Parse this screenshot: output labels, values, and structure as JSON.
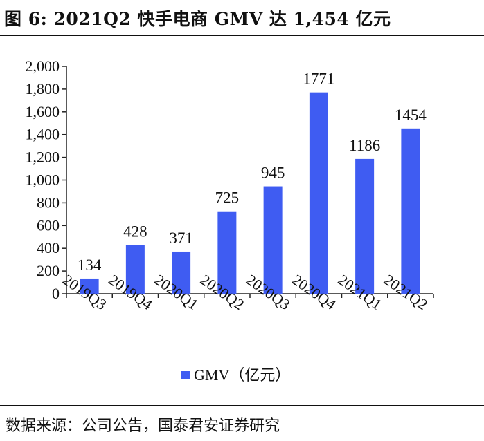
{
  "title": "图 6:  2021Q2 快手电商 GMV 达 1,454 亿元",
  "source": "数据来源：公司公告，国泰君安证券研究",
  "colors": {
    "bar": "#3f5cf2",
    "axis": "#222222"
  },
  "chart_data": {
    "type": "bar",
    "title": "",
    "xlabel": "",
    "ylabel": "",
    "categories": [
      "2019Q3",
      "2019Q4",
      "2020Q1",
      "2020Q2",
      "2020Q3",
      "2020Q4",
      "2021Q1",
      "2021Q2"
    ],
    "series": [
      {
        "name": "GMV（亿元）",
        "values": [
          134,
          428,
          371,
          725,
          945,
          1771,
          1186,
          1454
        ]
      }
    ],
    "data_labels": [
      "134",
      "428",
      "371",
      "725",
      "945",
      "1771",
      "1186",
      "1454"
    ],
    "ylim": [
      0,
      2000
    ],
    "yticks": [
      0,
      200,
      400,
      600,
      800,
      1000,
      1200,
      1400,
      1600,
      1800,
      2000
    ],
    "ytick_labels": [
      "0",
      "200",
      "400",
      "600",
      "800",
      "1,000",
      "1,200",
      "1,400",
      "1,600",
      "1,800",
      "2,000"
    ],
    "grid": false,
    "legend": "bottom-center"
  }
}
